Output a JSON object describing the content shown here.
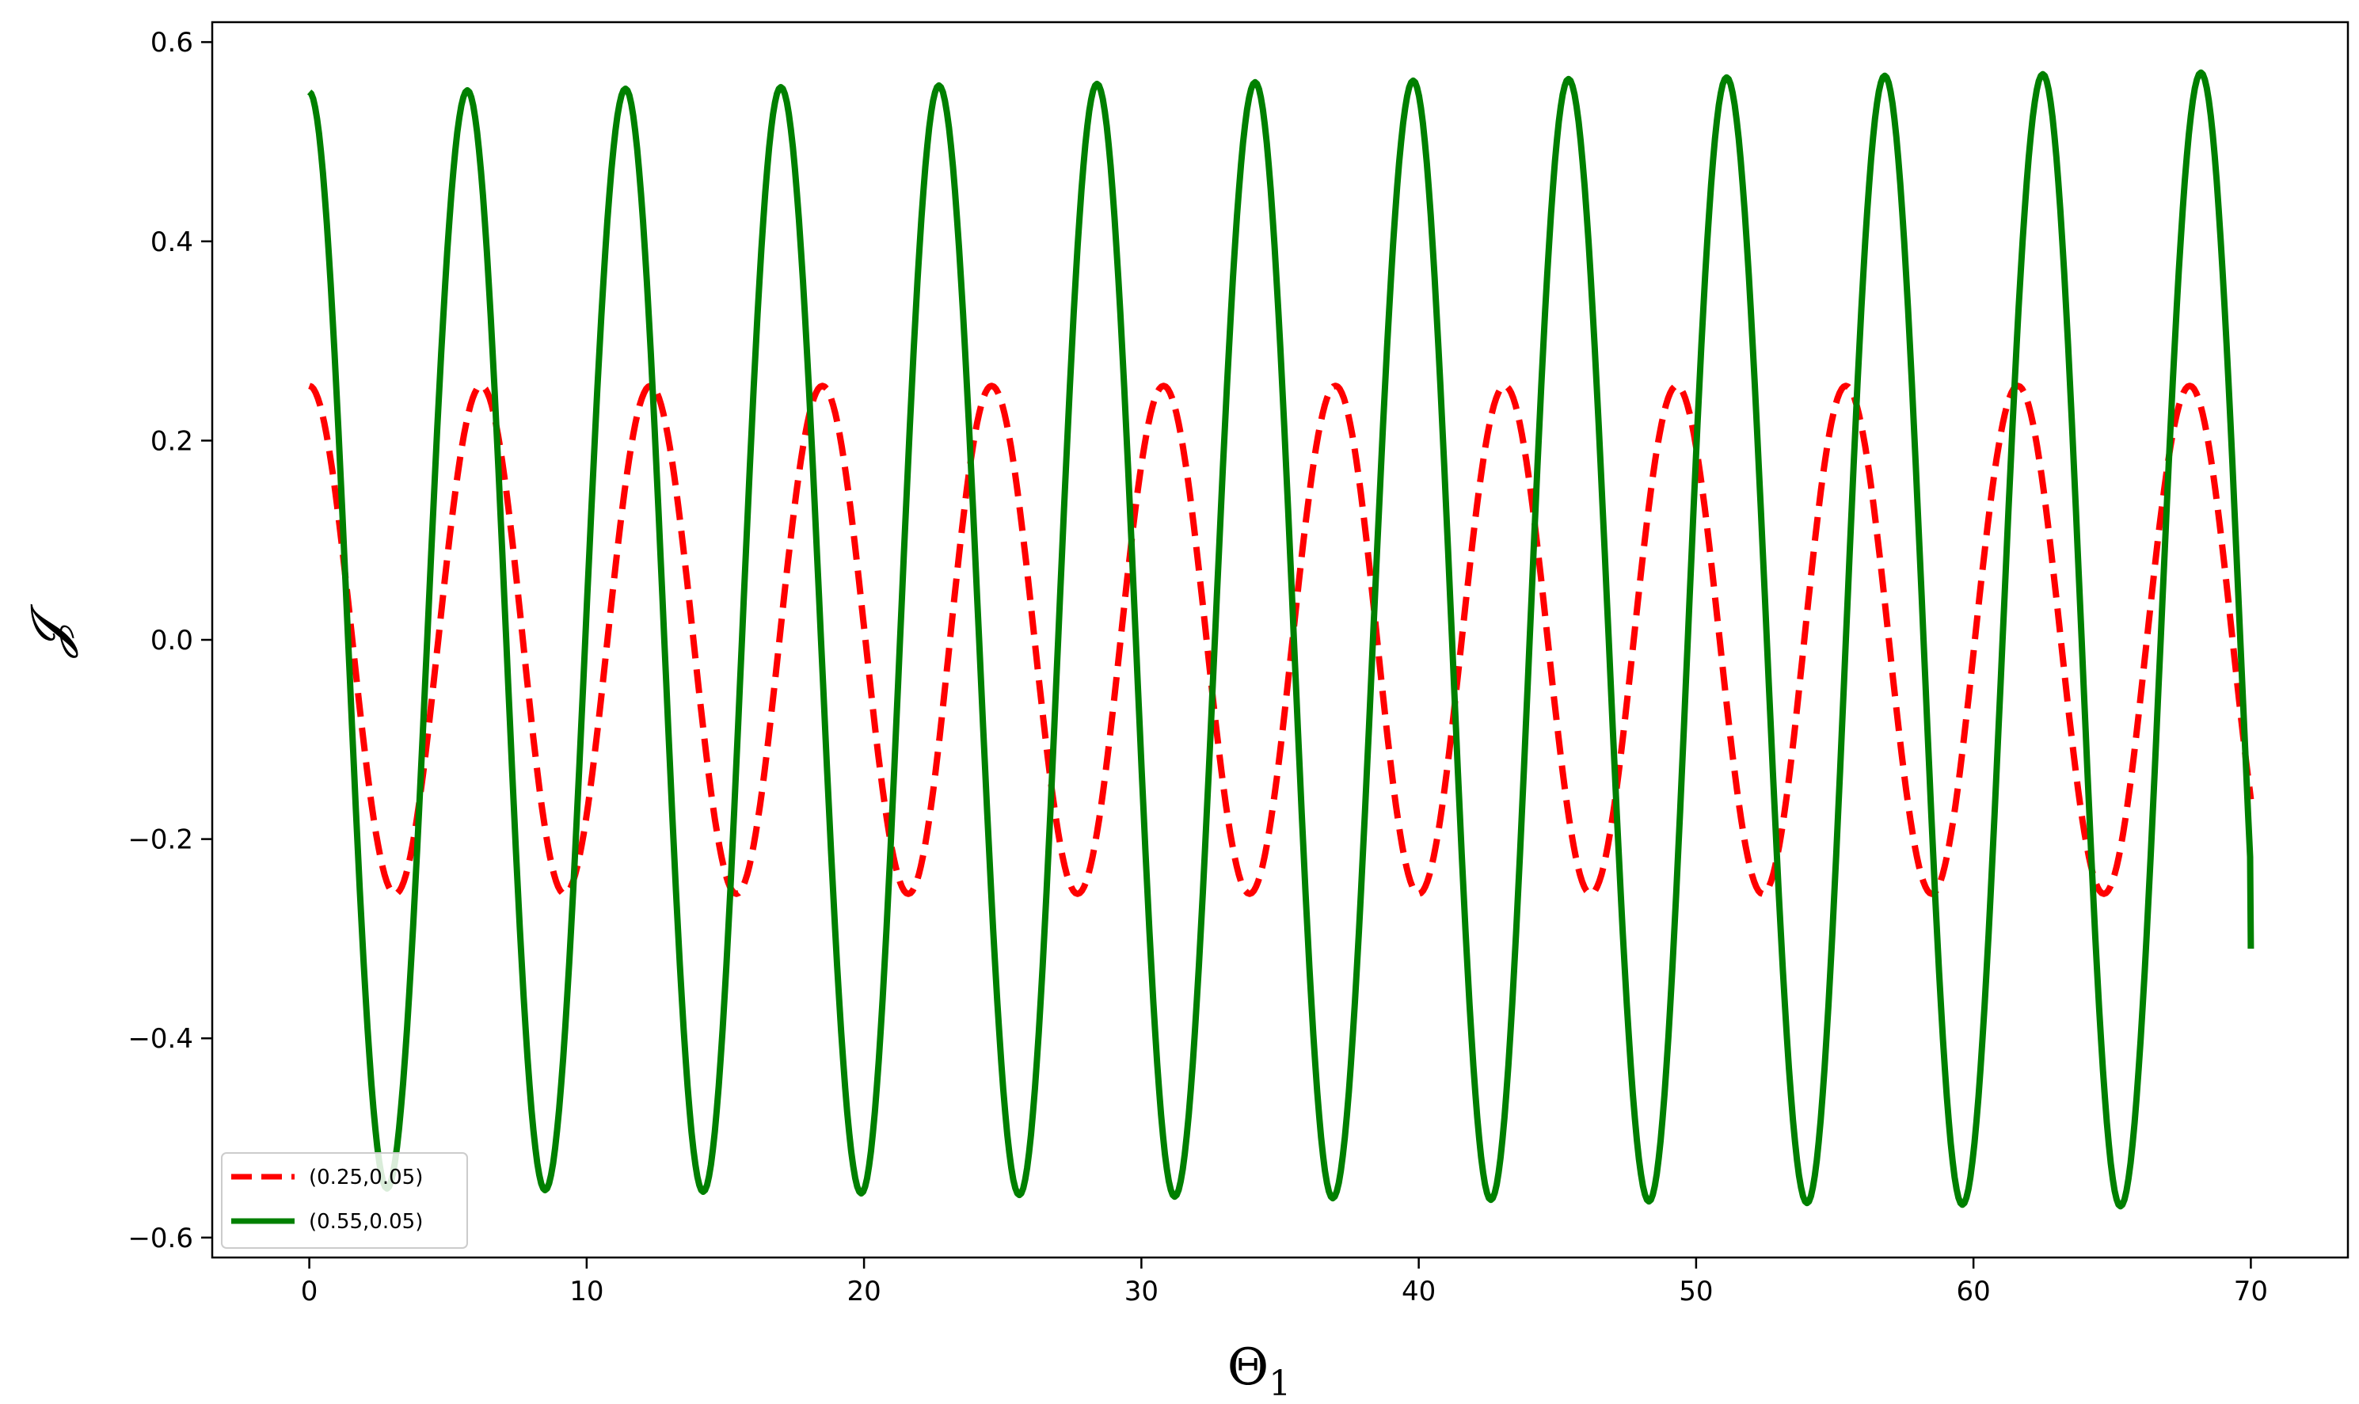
{
  "chart_data": {
    "type": "line",
    "title": "",
    "xlabel": "Θ",
    "xlabel_sub": "1",
    "ylabel": "𝓙",
    "xlim": [
      -3.5,
      73.5
    ],
    "ylim": [
      -0.62,
      0.62
    ],
    "xticks": [
      0,
      10,
      20,
      30,
      40,
      50,
      60,
      70
    ],
    "yticks": [
      -0.6,
      -0.4,
      -0.2,
      0.0,
      0.2,
      0.4,
      0.6
    ],
    "ytick_labels": [
      "−0.6",
      "−0.4",
      "−0.2",
      "0.0",
      "0.2",
      "0.4",
      "0.6"
    ],
    "grid": false,
    "legend_position": "lower-left",
    "x_range": [
      0,
      70
    ],
    "series": [
      {
        "name": "(0.25,0.05)",
        "color": "#ff0000",
        "style": "dashed",
        "amplitude": 0.255,
        "period": 6.16,
        "start_value": 0.255,
        "end_value": -0.16,
        "peaks_x": [
          0,
          6.2,
          12.3,
          18.5,
          24.6,
          30.8,
          37.0,
          43.1,
          49.3,
          55.4,
          61.6,
          67.8
        ],
        "troughs_x": [
          3.1,
          9.2,
          15.4,
          21.6,
          27.7,
          33.9,
          40.0,
          46.2,
          52.4,
          58.5,
          64.7
        ]
      },
      {
        "name": "(0.55,0.05)",
        "color": "#008000",
        "style": "solid",
        "amplitude_start": 0.55,
        "amplitude_end": 0.57,
        "period": 5.68,
        "start_value": 0.55,
        "end_value": -0.31,
        "peaks_x": [
          0,
          5.7,
          11.4,
          17.0,
          22.7,
          28.4,
          34.1,
          39.8,
          45.4,
          51.1,
          56.8,
          62.5,
          68.2
        ],
        "troughs_x": [
          2.8,
          8.5,
          14.2,
          19.9,
          25.6,
          31.2,
          36.9,
          42.6,
          48.3,
          54.0,
          59.6,
          65.3
        ]
      }
    ]
  }
}
